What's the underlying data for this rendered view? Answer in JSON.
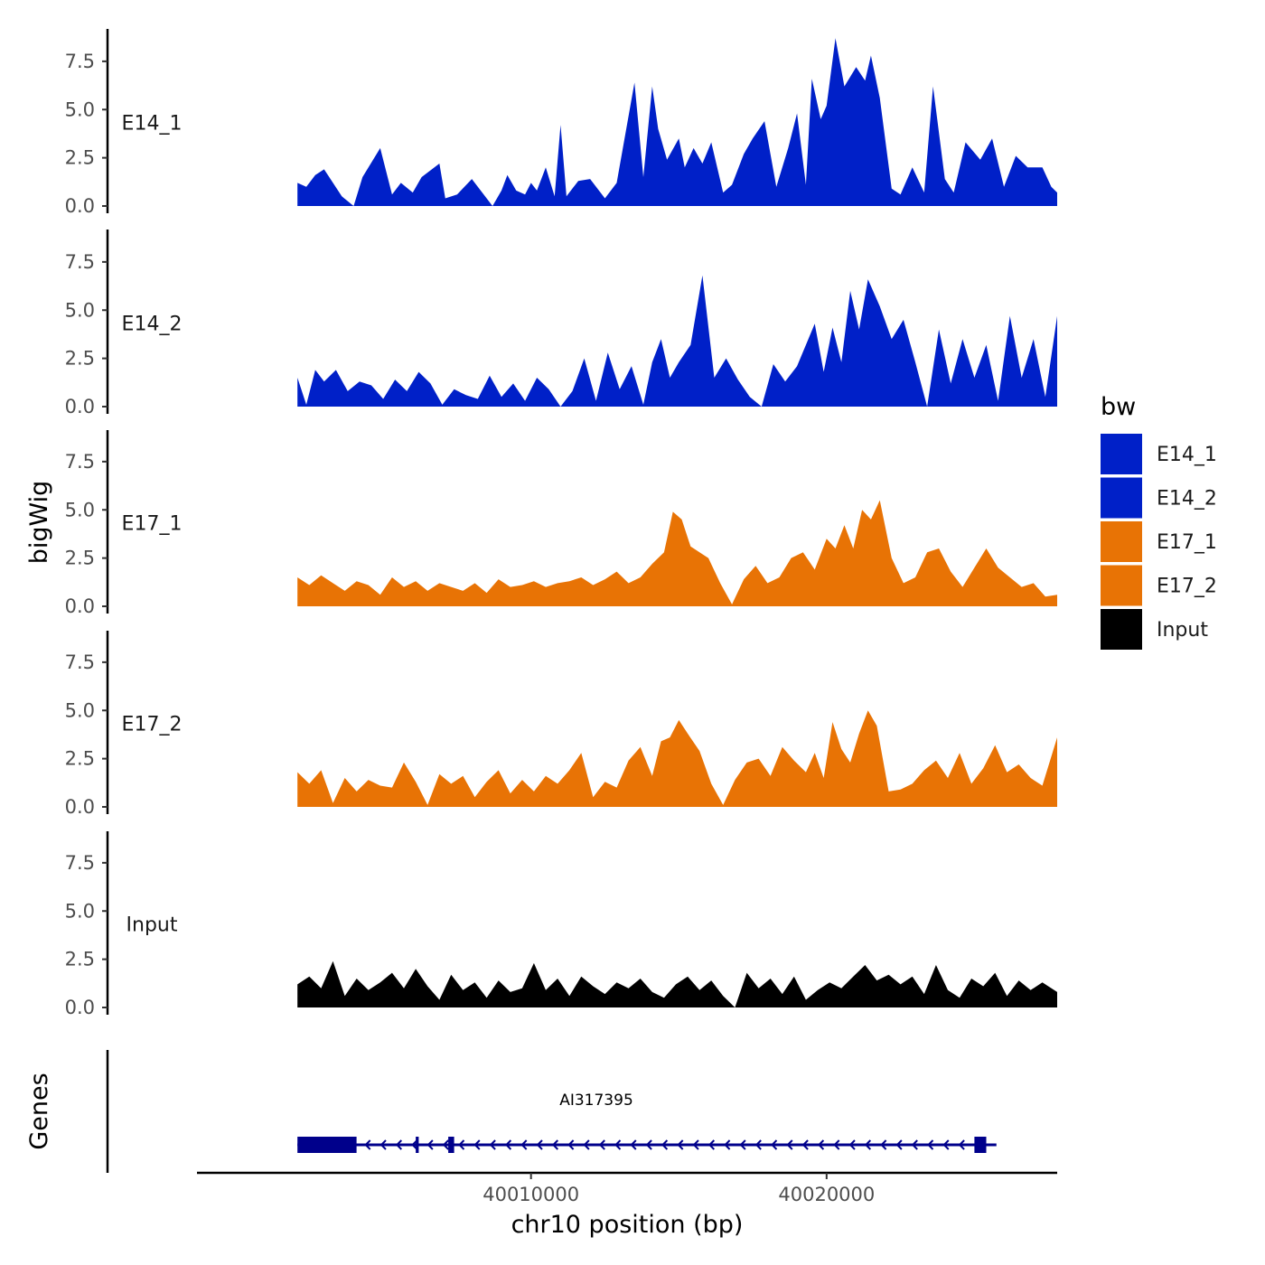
{
  "chart_data": {
    "type": "area",
    "region": "chr10",
    "xlabel": "chr10 position (bp)",
    "xlim": [
      39998700,
      40027800
    ],
    "x_ticks": [
      40010000,
      40020000
    ],
    "x_tick_labels": [
      "40010000",
      "40020000"
    ],
    "ylabel": "bigWig",
    "ylim": [
      0,
      9.2
    ],
    "y_ticks": [
      0,
      2.5,
      5,
      7.5
    ],
    "y_tick_labels": [
      "0.0",
      "2.5",
      "5.0",
      "7.5"
    ],
    "legend_title": "bw",
    "series": [
      {
        "name": "E14_1",
        "color": "#0020C8",
        "x": [
          40002100,
          40002400,
          40002700,
          40003000,
          40003600,
          40004000,
          40004300,
          40004900,
          40005300,
          40005600,
          40006000,
          40006300,
          40006900,
          40007100,
          40007500,
          40008000,
          40008700,
          40009000,
          40009200,
          40009500,
          40009800,
          40010000,
          40010200,
          40010500,
          40010800,
          40011000,
          40011200,
          40011600,
          40012000,
          40012500,
          40012900,
          40013500,
          40013800,
          40014100,
          40014300,
          40014600,
          40015000,
          40015200,
          40015500,
          40015800,
          40016100,
          40016500,
          40016800,
          40017200,
          40017500,
          40017900,
          40018300,
          40018700,
          40019000,
          40019300,
          40019500,
          40019800,
          40020000,
          40020300,
          40020600,
          40021000,
          40021300,
          40021500,
          40021800,
          40022200,
          40022500,
          40022900,
          40023300,
          40023600,
          40024000,
          40024300,
          40024700,
          40025200,
          40025600,
          40026000,
          40026400,
          40026800,
          40027300,
          40027600,
          40027800
        ],
        "values": [
          1.2,
          1.0,
          1.6,
          1.9,
          0.5,
          0.0,
          1.5,
          3.0,
          0.6,
          1.2,
          0.7,
          1.5,
          2.2,
          0.4,
          0.6,
          1.4,
          0.0,
          0.8,
          1.6,
          0.8,
          0.6,
          1.2,
          0.8,
          2.0,
          0.5,
          4.2,
          0.5,
          1.3,
          1.4,
          0.4,
          1.2,
          6.4,
          1.5,
          6.2,
          4.0,
          2.4,
          3.5,
          2.0,
          3.0,
          2.2,
          3.3,
          0.7,
          1.1,
          2.7,
          3.5,
          4.4,
          1.0,
          3.0,
          4.8,
          1.1,
          6.6,
          4.5,
          5.2,
          8.7,
          6.2,
          7.2,
          6.5,
          7.8,
          5.6,
          0.9,
          0.6,
          2.0,
          0.7,
          6.2,
          1.4,
          0.7,
          3.3,
          2.4,
          3.5,
          1.0,
          2.6,
          2.0,
          2.0,
          1.0,
          0.7
        ]
      },
      {
        "name": "E14_2",
        "color": "#0020C8",
        "x": [
          40002100,
          40002400,
          40002700,
          40003000,
          40003400,
          40003800,
          40004200,
          40004600,
          40005000,
          40005400,
          40005800,
          40006200,
          40006600,
          40007000,
          40007400,
          40007800,
          40008200,
          40008600,
          40009000,
          40009400,
          40009800,
          40010200,
          40010600,
          40011000,
          40011400,
          40011800,
          40012200,
          40012600,
          40013000,
          40013400,
          40013800,
          40014100,
          40014400,
          40014700,
          40015000,
          40015400,
          40015800,
          40016200,
          40016600,
          40017000,
          40017400,
          40017800,
          40018200,
          40018600,
          40019000,
          40019300,
          40019600,
          40019900,
          40020200,
          40020500,
          40020800,
          40021100,
          40021400,
          40021800,
          40022200,
          40022600,
          40023000,
          40023400,
          40023800,
          40024200,
          40024600,
          40025000,
          40025400,
          40025800,
          40026200,
          40026600,
          40027000,
          40027400,
          40027800
        ],
        "values": [
          1.5,
          0.1,
          1.9,
          1.3,
          1.9,
          0.8,
          1.3,
          1.1,
          0.4,
          1.4,
          0.8,
          1.8,
          1.2,
          0.1,
          0.9,
          0.6,
          0.4,
          1.6,
          0.5,
          1.2,
          0.3,
          1.5,
          0.9,
          0.0,
          0.8,
          2.5,
          0.3,
          2.8,
          0.9,
          2.1,
          0.1,
          2.3,
          3.5,
          1.5,
          2.3,
          3.2,
          6.8,
          1.5,
          2.5,
          1.4,
          0.5,
          0.0,
          2.2,
          1.3,
          2.1,
          3.2,
          4.3,
          1.8,
          4.1,
          2.3,
          6.0,
          4.0,
          6.6,
          5.2,
          3.5,
          4.5,
          2.3,
          0.0,
          4.0,
          1.2,
          3.5,
          1.5,
          3.2,
          0.3,
          4.7,
          1.5,
          3.5,
          0.5,
          4.7
        ]
      },
      {
        "name": "E17_1",
        "color": "#E87305",
        "x": [
          40002100,
          40002500,
          40002900,
          40003300,
          40003700,
          40004100,
          40004500,
          40004900,
          40005300,
          40005700,
          40006100,
          40006500,
          40006900,
          40007300,
          40007700,
          40008100,
          40008500,
          40008900,
          40009300,
          40009700,
          40010100,
          40010500,
          40010900,
          40011300,
          40011700,
          40012100,
          40012500,
          40012900,
          40013300,
          40013700,
          40014100,
          40014500,
          40014800,
          40015100,
          40015400,
          40015700,
          40016000,
          40016400,
          40016800,
          40017200,
          40017600,
          40018000,
          40018400,
          40018800,
          40019200,
          40019600,
          40020000,
          40020300,
          40020600,
          40020900,
          40021200,
          40021500,
          40021800,
          40022200,
          40022600,
          40023000,
          40023400,
          40023800,
          40024200,
          40024600,
          40025000,
          40025400,
          40025800,
          40026200,
          40026600,
          40027000,
          40027400,
          40027800
        ],
        "values": [
          1.5,
          1.1,
          1.6,
          1.2,
          0.8,
          1.3,
          1.1,
          0.6,
          1.5,
          1.0,
          1.3,
          0.8,
          1.2,
          1.0,
          0.8,
          1.2,
          0.7,
          1.4,
          1.0,
          1.1,
          1.3,
          1.0,
          1.2,
          1.3,
          1.5,
          1.1,
          1.4,
          1.8,
          1.2,
          1.5,
          2.2,
          2.8,
          4.9,
          4.5,
          3.1,
          2.8,
          2.5,
          1.2,
          0.1,
          1.4,
          2.1,
          1.2,
          1.5,
          2.5,
          2.8,
          1.9,
          3.5,
          3.0,
          4.2,
          3.0,
          5.0,
          4.5,
          5.5,
          2.5,
          1.2,
          1.5,
          2.8,
          3.0,
          1.8,
          1.0,
          2.0,
          3.0,
          2.0,
          1.5,
          1.0,
          1.2,
          0.5,
          0.6
        ]
      },
      {
        "name": "E17_2",
        "color": "#E87305",
        "x": [
          40002100,
          40002500,
          40002900,
          40003300,
          40003700,
          40004100,
          40004500,
          40004900,
          40005300,
          40005700,
          40006100,
          40006500,
          40006900,
          40007300,
          40007700,
          40008100,
          40008500,
          40008900,
          40009300,
          40009700,
          40010100,
          40010500,
          40010900,
          40011300,
          40011700,
          40012100,
          40012500,
          40012900,
          40013300,
          40013700,
          40014100,
          40014400,
          40014700,
          40015000,
          40015300,
          40015700,
          40016100,
          40016500,
          40016900,
          40017300,
          40017700,
          40018100,
          40018500,
          40018900,
          40019300,
          40019600,
          40019900,
          40020200,
          40020500,
          40020800,
          40021100,
          40021400,
          40021700,
          40022100,
          40022500,
          40022900,
          40023300,
          40023700,
          40024100,
          40024500,
          40024900,
          40025300,
          40025700,
          40026100,
          40026500,
          40026900,
          40027300,
          40027800
        ],
        "values": [
          1.8,
          1.2,
          1.9,
          0.2,
          1.5,
          0.8,
          1.4,
          1.1,
          1.0,
          2.3,
          1.3,
          0.1,
          1.7,
          1.2,
          1.6,
          0.5,
          1.3,
          1.9,
          0.7,
          1.4,
          0.8,
          1.6,
          1.2,
          1.9,
          2.8,
          0.5,
          1.3,
          1.0,
          2.4,
          3.1,
          1.6,
          3.4,
          3.6,
          4.5,
          3.8,
          2.9,
          1.2,
          0.1,
          1.4,
          2.3,
          2.5,
          1.6,
          3.1,
          2.4,
          1.8,
          2.8,
          1.5,
          4.4,
          3.0,
          2.3,
          3.8,
          5.0,
          4.2,
          0.8,
          0.9,
          1.2,
          1.9,
          2.4,
          1.5,
          2.8,
          1.2,
          2.0,
          3.2,
          1.8,
          2.2,
          1.5,
          1.1,
          3.6
        ]
      },
      {
        "name": "Input",
        "color": "#000000",
        "x": [
          40002100,
          40002500,
          40002900,
          40003300,
          40003700,
          40004100,
          40004500,
          40004900,
          40005300,
          40005700,
          40006100,
          40006500,
          40006900,
          40007300,
          40007700,
          40008100,
          40008500,
          40008900,
          40009300,
          40009700,
          40010100,
          40010500,
          40010900,
          40011300,
          40011700,
          40012100,
          40012500,
          40012900,
          40013300,
          40013700,
          40014100,
          40014500,
          40014900,
          40015300,
          40015700,
          40016100,
          40016500,
          40016900,
          40017300,
          40017700,
          40018100,
          40018500,
          40018900,
          40019300,
          40019700,
          40020100,
          40020500,
          40020900,
          40021300,
          40021700,
          40022100,
          40022500,
          40022900,
          40023300,
          40023700,
          40024100,
          40024500,
          40024900,
          40025300,
          40025700,
          40026100,
          40026500,
          40026900,
          40027300,
          40027800
        ],
        "values": [
          1.2,
          1.6,
          1.0,
          2.4,
          0.6,
          1.5,
          0.9,
          1.3,
          1.8,
          1.0,
          2.0,
          1.1,
          0.4,
          1.7,
          0.9,
          1.3,
          0.5,
          1.4,
          0.8,
          1.0,
          2.3,
          0.9,
          1.5,
          0.6,
          1.6,
          1.1,
          0.7,
          1.3,
          1.0,
          1.5,
          0.8,
          0.5,
          1.2,
          1.6,
          0.9,
          1.4,
          0.6,
          0.0,
          1.8,
          1.0,
          1.5,
          0.7,
          1.6,
          0.4,
          0.9,
          1.3,
          1.0,
          1.6,
          2.2,
          1.4,
          1.7,
          1.2,
          1.6,
          0.7,
          2.2,
          0.9,
          0.5,
          1.5,
          1.1,
          1.8,
          0.6,
          1.4,
          0.9,
          1.3,
          0.8
        ]
      }
    ],
    "genes": {
      "panel_label": "Genes",
      "name": "AI317395",
      "color": "#00008B",
      "start": 40002100,
      "end": 40025500,
      "strand": "-",
      "exons": [
        [
          40002100,
          40004100
        ],
        [
          40006100,
          40006200
        ],
        [
          40007200,
          40007400
        ],
        [
          40025000,
          40025400
        ]
      ]
    }
  }
}
